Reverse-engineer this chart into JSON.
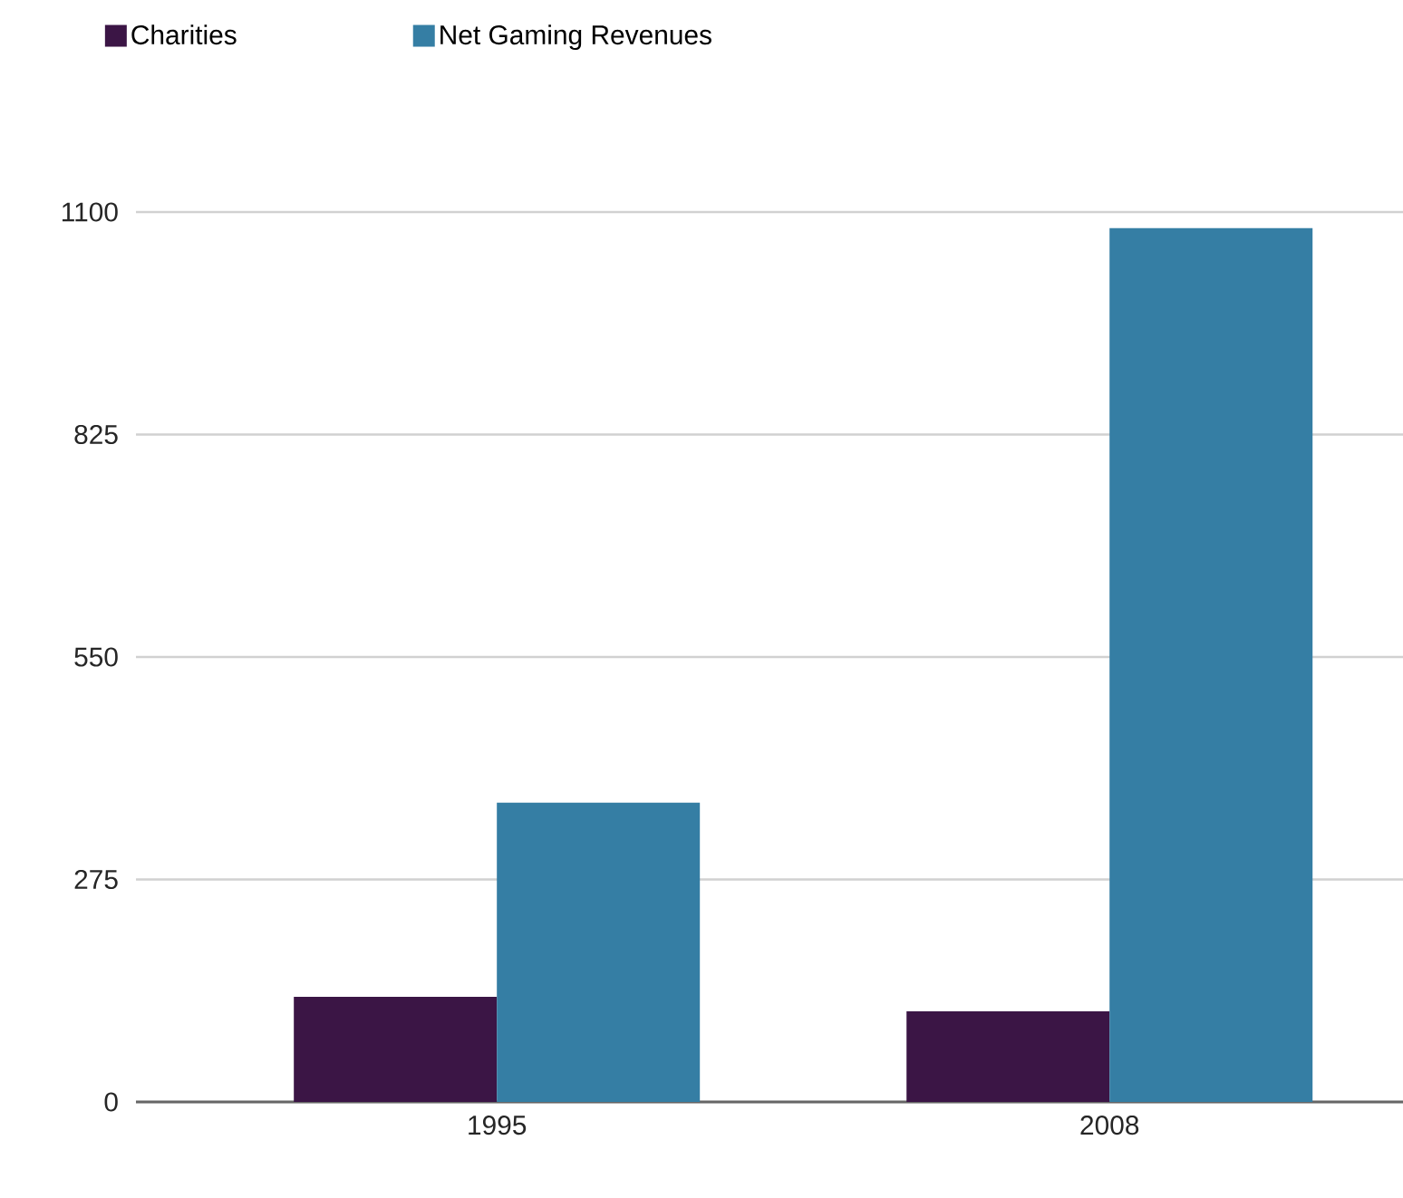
{
  "chart_data": {
    "type": "bar",
    "categories": [
      "1995",
      "2008"
    ],
    "series": [
      {
        "name": "Charities",
        "color": "#3b1545",
        "values": [
          130,
          112
        ]
      },
      {
        "name": "Net Gaming Revenues",
        "color": "#357ea4",
        "values": [
          370,
          1080
        ]
      }
    ],
    "ylim": [
      0,
      1100
    ],
    "yticks": [
      0,
      275,
      550,
      825,
      1100
    ],
    "grid": "y",
    "legend": "top left"
  }
}
